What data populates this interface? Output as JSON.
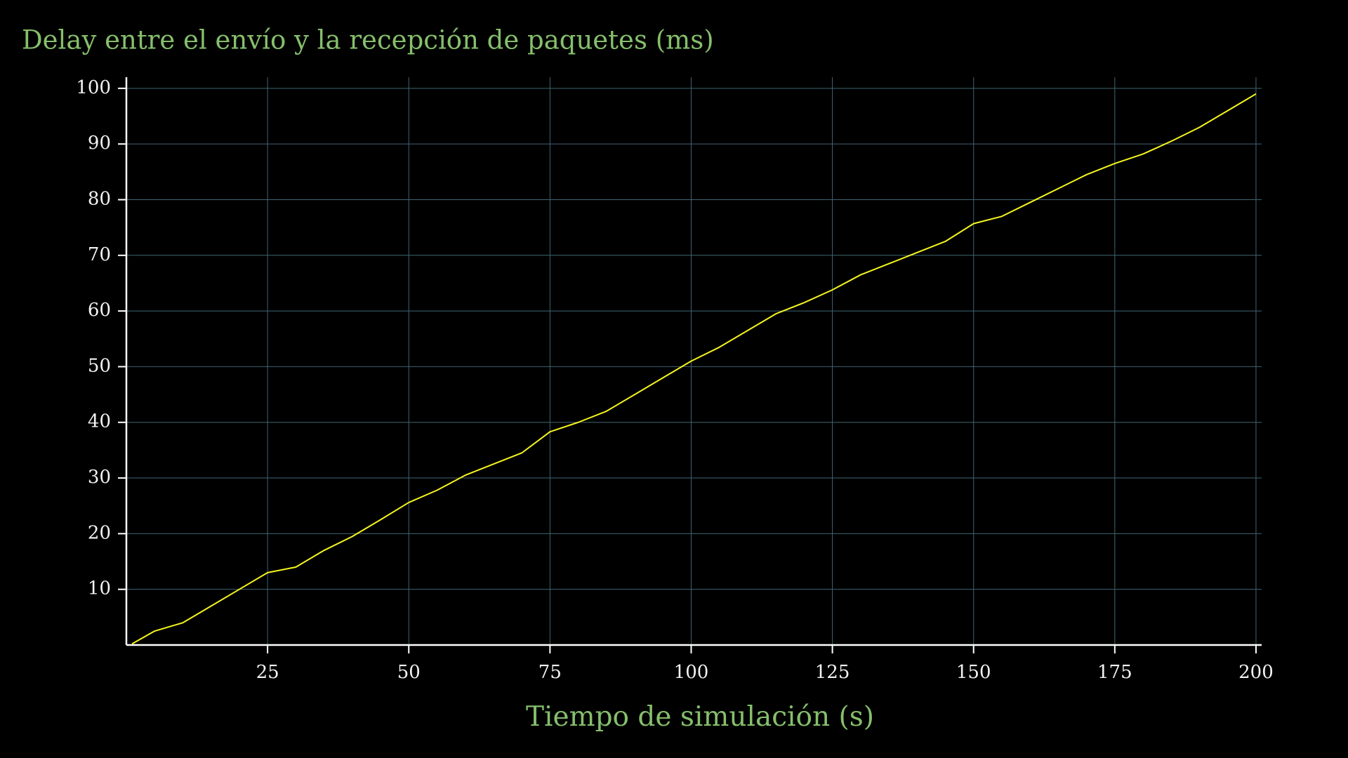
{
  "chart_data": {
    "type": "line",
    "title": "Delay entre el envío y la recepción de paquetes (ms)",
    "x_label": "Tiempo de simulación (s)",
    "x": [
      1,
      5,
      10,
      15,
      20,
      25,
      30,
      35,
      40,
      45,
      50,
      55,
      60,
      65,
      70,
      75,
      80,
      85,
      90,
      95,
      100,
      105,
      110,
      115,
      120,
      125,
      130,
      135,
      140,
      145,
      150,
      155,
      160,
      165,
      170,
      175,
      180,
      185,
      190,
      195,
      200
    ],
    "series": [
      {
        "color": "#f5f51e",
        "values": [
          0.2,
          2.5,
          4,
          7,
          10,
          13,
          14,
          17,
          19.5,
          22.5,
          25.6,
          27.8,
          30.5,
          32.5,
          34.5,
          38.3,
          40,
          42,
          45,
          48,
          51,
          53.5,
          56.5,
          59.5,
          61.5,
          63.8,
          66.5,
          68.5,
          70.5,
          72.5,
          75.7,
          77,
          79.5,
          82,
          84.5,
          86.5,
          88.2,
          90.5,
          93,
          96,
          99
        ]
      }
    ],
    "xlim": [
      0,
      201
    ],
    "ylim": [
      0,
      102
    ],
    "xticks": [
      25,
      50,
      75,
      100,
      125,
      150,
      175,
      200
    ],
    "yticks": [
      10,
      20,
      30,
      40,
      50,
      60,
      70,
      80,
      90,
      100
    ],
    "grid": true,
    "grid_color": "#3f6573",
    "axis_color": "#ffffff",
    "label_color": "#86bf6c"
  }
}
